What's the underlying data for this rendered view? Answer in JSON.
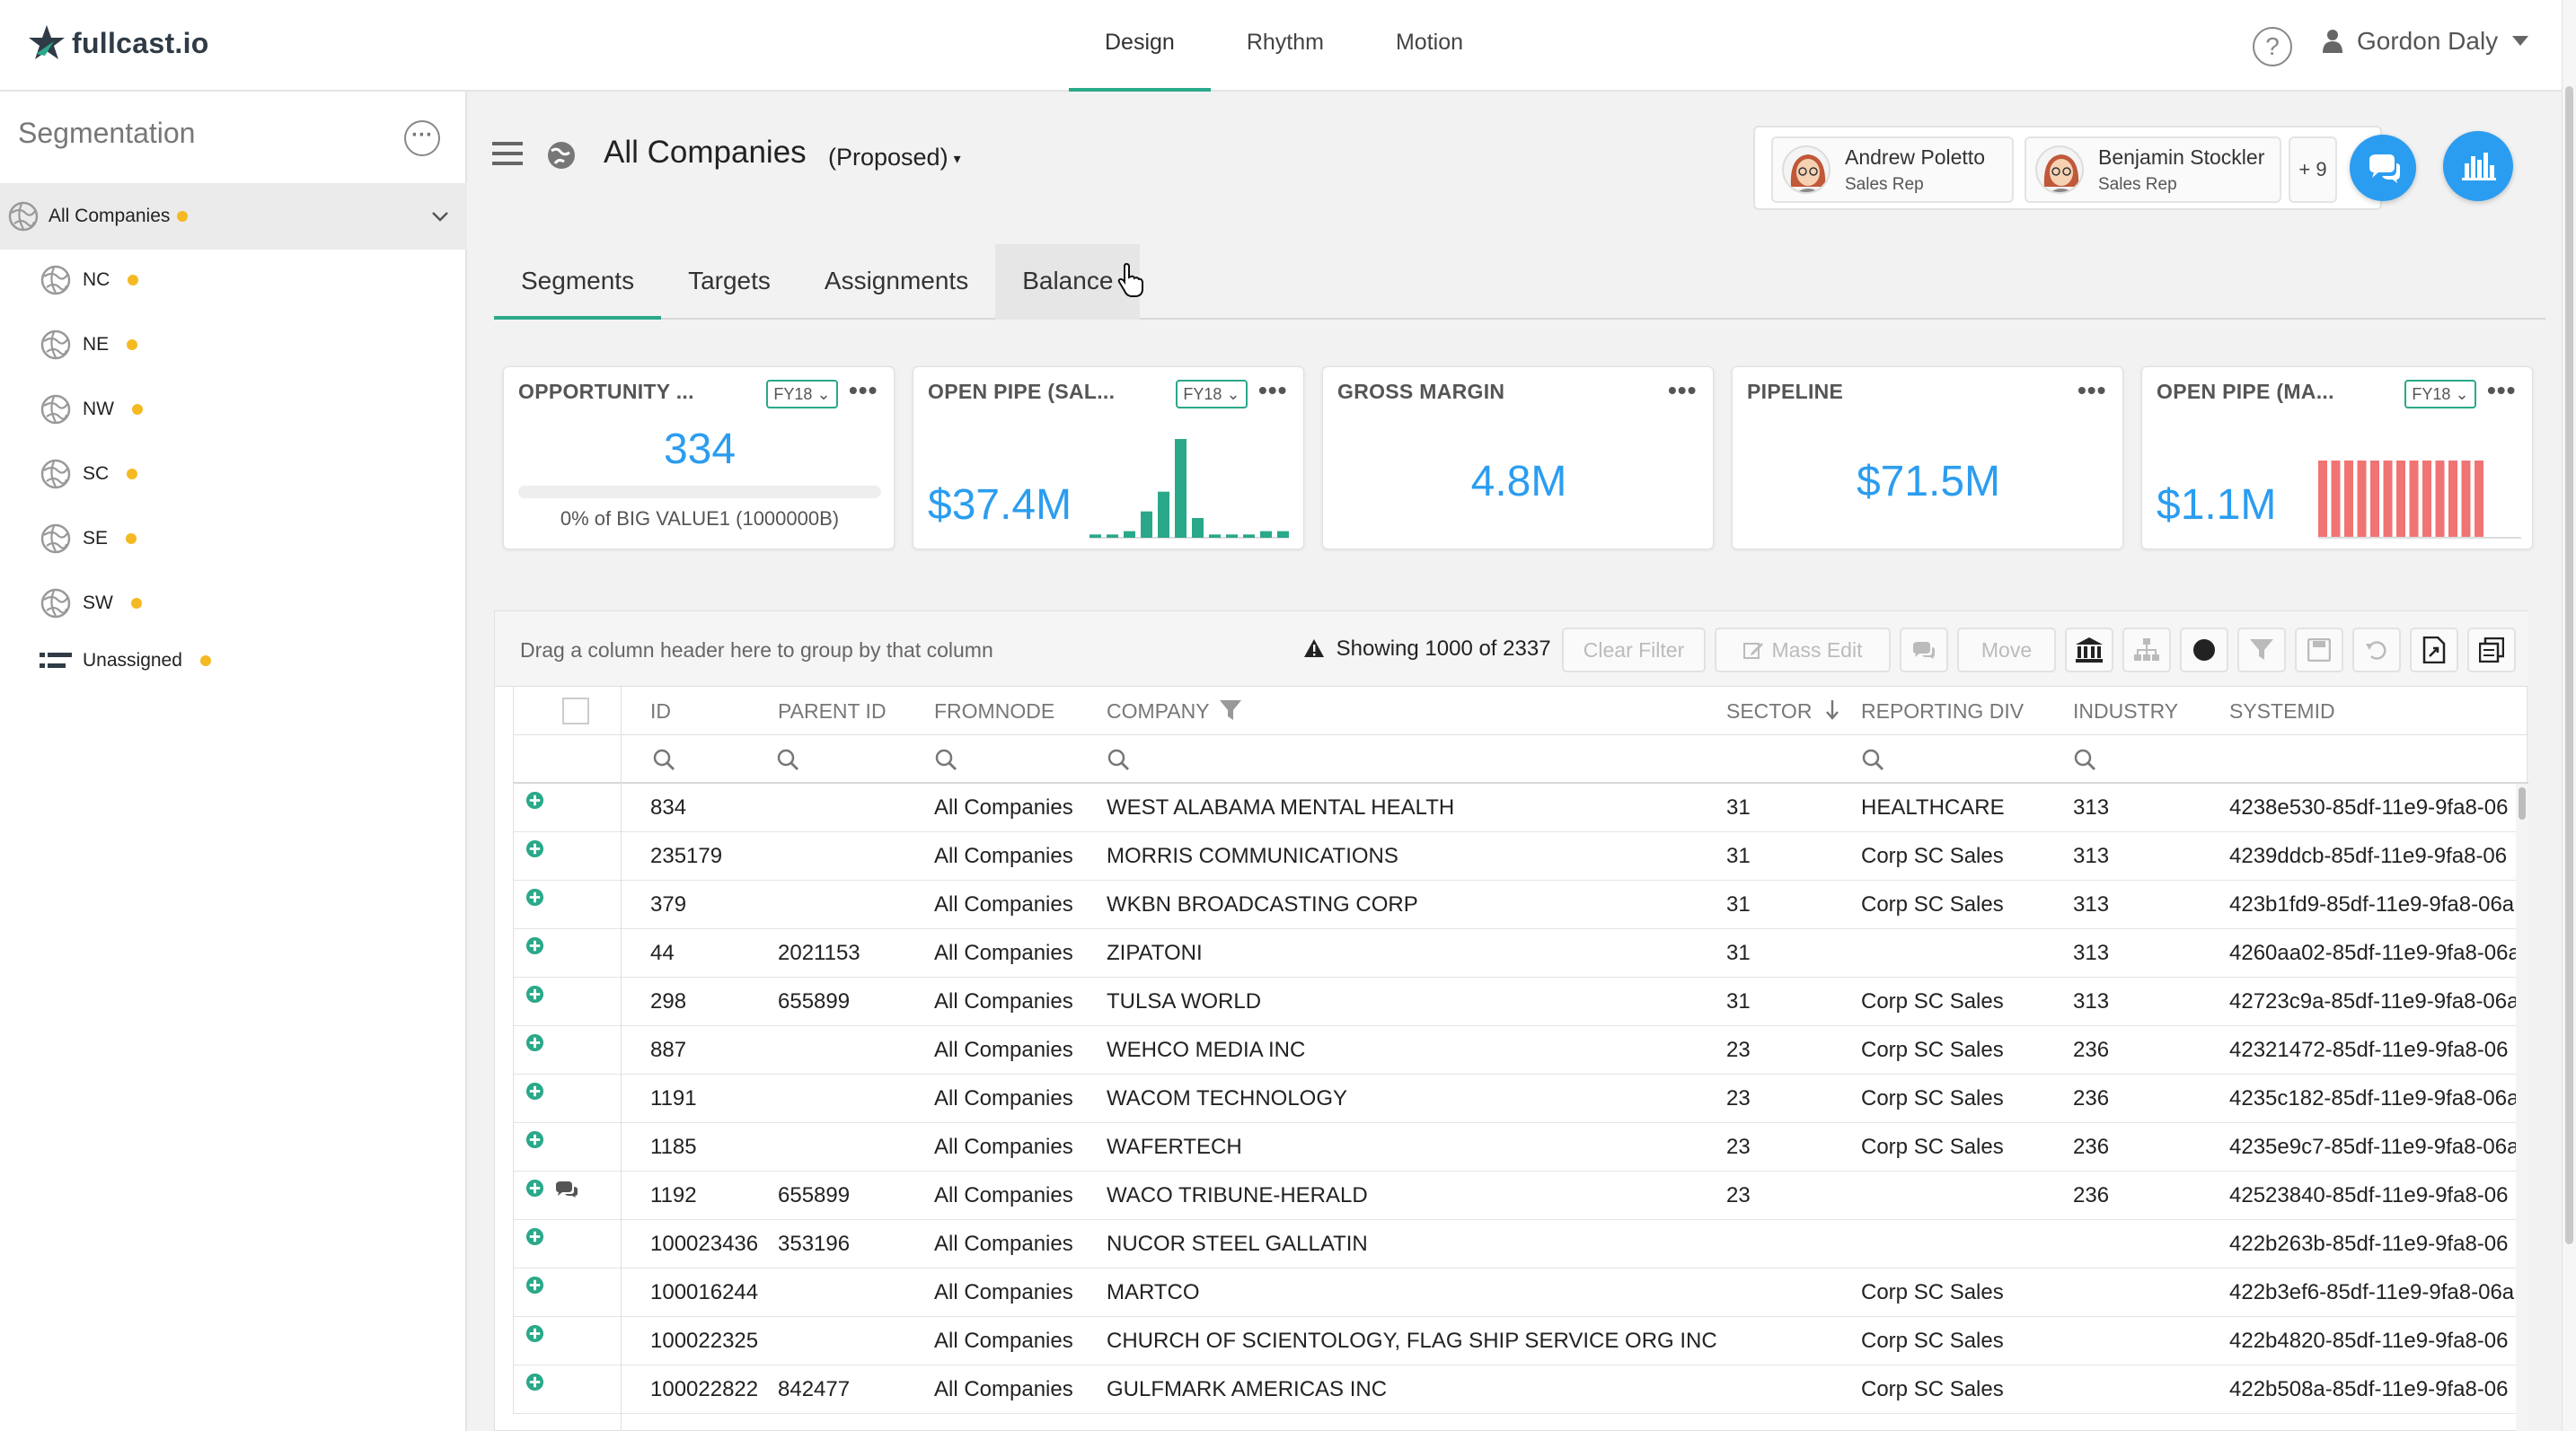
{
  "app": {
    "logo_text": "fullcast.io",
    "nav": [
      "Design",
      "Rhythm",
      "Motion"
    ],
    "nav_active": "Design",
    "help_glyph": "?",
    "user_name": "Gordon Daly"
  },
  "sidebar": {
    "title": "Segmentation",
    "root": "All Companies",
    "items": [
      "NC",
      "NE",
      "NW",
      "SC",
      "SE",
      "SW"
    ],
    "unassigned": "Unassigned"
  },
  "header": {
    "title": "All Companies",
    "status": "(Proposed)",
    "reps": [
      {
        "name": "Andrew Poletto",
        "role": "Sales Rep"
      },
      {
        "name": "Benjamin Stockler",
        "role": "Sales Rep"
      }
    ],
    "more_reps": "+ 9"
  },
  "tabs": [
    "Segments",
    "Targets",
    "Assignments",
    "Balance"
  ],
  "tab_active": "Segments",
  "cards": [
    {
      "title": "OPPORTUNITY ...",
      "fy": "FY18",
      "value": "334",
      "sub": "0% of BIG VALUE1 (1000000B)",
      "progress": 0
    },
    {
      "title": "OPEN PIPE (SAL...",
      "fy": "FY18",
      "value": "$37.4M",
      "spark": [
        1,
        1,
        2,
        8,
        14,
        30,
        6,
        1,
        1,
        1,
        2,
        2
      ]
    },
    {
      "title": "GROSS MARGIN",
      "value": "4.8M"
    },
    {
      "title": "PIPELINE",
      "value": "$71.5M"
    },
    {
      "title": "OPEN PIPE (MA...",
      "fy": "FY18",
      "value": "$1.1M",
      "bars": [
        10,
        10,
        10,
        10,
        10,
        10,
        10,
        10,
        10,
        10,
        10,
        10,
        10
      ]
    }
  ],
  "icons": {
    "card_dots": "•••",
    "dropdown_caret": "▾"
  },
  "grid": {
    "drag_hint": "Drag a column header here to group by that column",
    "showing": "Showing 1000 of 2337",
    "buttons": {
      "clear_filter": "Clear Filter",
      "mass_edit": "Mass Edit",
      "move": "Move"
    },
    "columns": [
      "ID",
      "PARENT ID",
      "FROMNODE",
      "COMPANY",
      "SECTOR",
      "REPORTING DIV",
      "INDUSTRY",
      "SYSTEMID"
    ],
    "rows": [
      {
        "id": "834",
        "parent": "",
        "from": "All Companies",
        "company": "WEST ALABAMA MENTAL HEALTH",
        "sector": "31",
        "div": "HEALTHCARE",
        "industry": "313",
        "sys": "4238e530-85df-11e9-9fa8-06"
      },
      {
        "id": "235179",
        "parent": "",
        "from": "All Companies",
        "company": "MORRIS COMMUNICATIONS",
        "sector": "31",
        "div": "Corp SC Sales",
        "industry": "313",
        "sys": "4239ddcb-85df-11e9-9fa8-06"
      },
      {
        "id": "379",
        "parent": "",
        "from": "All Companies",
        "company": "WKBN BROADCASTING CORP",
        "sector": "31",
        "div": "Corp SC Sales",
        "industry": "313",
        "sys": "423b1fd9-85df-11e9-9fa8-06a"
      },
      {
        "id": "44",
        "parent": "2021153",
        "from": "All Companies",
        "company": "ZIPATONI",
        "sector": "31",
        "div": "",
        "industry": "313",
        "sys": "4260aa02-85df-11e9-9fa8-06a"
      },
      {
        "id": "298",
        "parent": "655899",
        "from": "All Companies",
        "company": "TULSA WORLD",
        "sector": "31",
        "div": "Corp SC Sales",
        "industry": "313",
        "sys": "42723c9a-85df-11e9-9fa8-06a"
      },
      {
        "id": "887",
        "parent": "",
        "from": "All Companies",
        "company": "WEHCO MEDIA INC",
        "sector": "23",
        "div": "Corp SC Sales",
        "industry": "236",
        "sys": "42321472-85df-11e9-9fa8-06"
      },
      {
        "id": "1191",
        "parent": "",
        "from": "All Companies",
        "company": "WACOM TECHNOLOGY",
        "sector": "23",
        "div": "Corp SC Sales",
        "industry": "236",
        "sys": "4235c182-85df-11e9-9fa8-06a"
      },
      {
        "id": "1185",
        "parent": "",
        "from": "All Companies",
        "company": "WAFERTECH",
        "sector": "23",
        "div": "Corp SC Sales",
        "industry": "236",
        "sys": "4235e9c7-85df-11e9-9fa8-06a"
      },
      {
        "id": "1192",
        "parent": "655899",
        "from": "All Companies",
        "company": "WACO TRIBUNE-HERALD",
        "sector": "23",
        "div": "",
        "industry": "236",
        "sys": "42523840-85df-11e9-9fa8-06",
        "comment": true
      },
      {
        "id": "100023436",
        "parent": "353196",
        "from": "All Companies",
        "company": "NUCOR STEEL GALLATIN",
        "sector": "",
        "div": "",
        "industry": "",
        "sys": "422b263b-85df-11e9-9fa8-06"
      },
      {
        "id": "100016244",
        "parent": "",
        "from": "All Companies",
        "company": "MARTCO",
        "sector": "",
        "div": "Corp SC Sales",
        "industry": "",
        "sys": "422b3ef6-85df-11e9-9fa8-06a"
      },
      {
        "id": "100022325",
        "parent": "",
        "from": "All Companies",
        "company": "CHURCH OF SCIENTOLOGY, FLAG SHIP SERVICE ORG INC.",
        "sector": "",
        "div": "Corp SC Sales",
        "industry": "",
        "sys": "422b4820-85df-11e9-9fa8-06"
      },
      {
        "id": "100022822",
        "parent": "842477",
        "from": "All Companies",
        "company": "GULFMARK AMERICAS INC",
        "sector": "",
        "div": "Corp SC Sales",
        "industry": "",
        "sys": "422b508a-85df-11e9-9fa8-06"
      }
    ]
  },
  "colors": {
    "accent": "#2aa88a",
    "blue": "#2b9df0",
    "dot": "#f5b922",
    "bars": "#f07474"
  }
}
